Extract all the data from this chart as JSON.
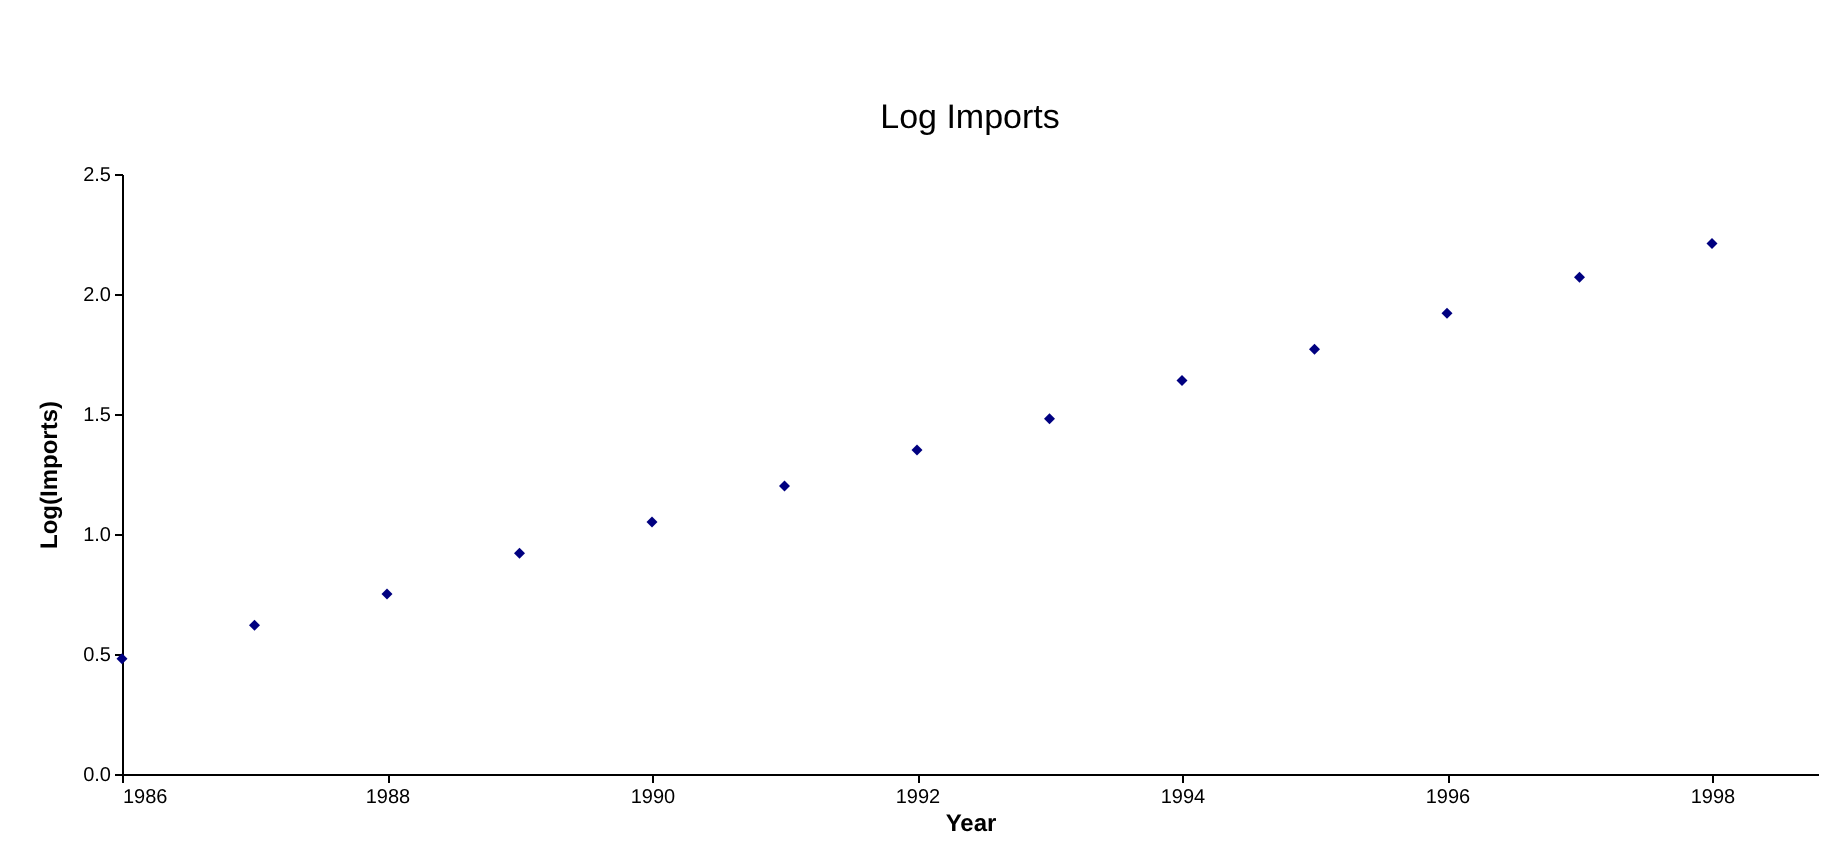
{
  "chart_data": {
    "type": "scatter",
    "title": "Log Imports",
    "xlabel": "Year",
    "ylabel": "Log(Imports)",
    "x": [
      1986,
      1987,
      1988,
      1989,
      1990,
      1991,
      1992,
      1993,
      1994,
      1995,
      1996,
      1997,
      1998
    ],
    "series": [
      {
        "color": "#000080",
        "values": [
          0.48,
          0.62,
          0.75,
          0.92,
          1.05,
          1.2,
          1.35,
          1.48,
          1.64,
          1.77,
          1.92,
          2.07,
          2.21
        ]
      }
    ],
    "xlim": [
      1986,
      1998.8
    ],
    "xticks": [
      1986,
      1988,
      1990,
      1992,
      1994,
      1996,
      1998
    ],
    "ylim": [
      0,
      2.5
    ],
    "yticks": [
      {
        "value": 0,
        "label": "0.0"
      },
      {
        "value": 0.5,
        "label": "0.5"
      },
      {
        "value": 1,
        "label": "1.0"
      },
      {
        "value": 1.5,
        "label": "1.5"
      },
      {
        "value": 2,
        "label": "2.0"
      },
      {
        "value": 2.5,
        "label": "2.5"
      }
    ],
    "marker": "diamond",
    "grid": false
  }
}
